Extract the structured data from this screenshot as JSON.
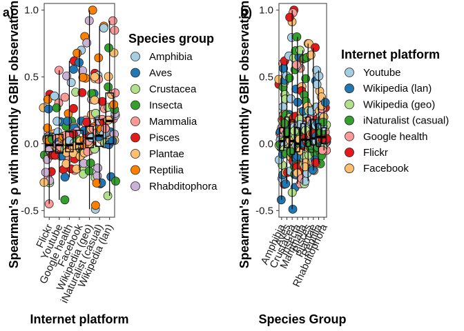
{
  "chart_data": [
    {
      "type": "box-jitter",
      "panel_label": "a)",
      "xlabel": "Internet platform",
      "ylabel": "Spearman's ρ with monthly GBIF observations",
      "ylim": [
        -0.55,
        1.05
      ],
      "yticks": [
        -0.5,
        0.0,
        0.5,
        1.0
      ],
      "ytick_labels": [
        "-0.5",
        "0.0",
        "0.5",
        "1.0"
      ],
      "categories": [
        "Flickr",
        "Youtube",
        "Google health",
        "Facebook",
        "Wikipedia (geo)",
        "iNaturalist (casual)",
        "Wikipedia (lan)"
      ],
      "boxes": [
        {
          "category": "Flickr",
          "q1": -0.06,
          "median": -0.01,
          "q3": 0.06,
          "lo": -0.45,
          "hi": 0.37
        },
        {
          "category": "Youtube",
          "q1": -0.07,
          "median": -0.01,
          "q3": 0.07,
          "lo": -0.42,
          "hi": 0.55
        },
        {
          "category": "Google health",
          "q1": -0.06,
          "median": -0.01,
          "q3": 0.09,
          "lo": -0.25,
          "hi": 0.62
        },
        {
          "category": "Facebook",
          "q1": -0.04,
          "median": 0.0,
          "q3": 0.1,
          "lo": -0.2,
          "hi": 0.7
        },
        {
          "category": "Wikipedia (geo)",
          "q1": -0.03,
          "median": 0.04,
          "q3": 0.13,
          "lo": -0.49,
          "hi": 1.0
        },
        {
          "category": "iNaturalist (casual)",
          "q1": -0.02,
          "median": 0.06,
          "q3": 0.18,
          "lo": -0.3,
          "hi": 0.88
        },
        {
          "category": "Wikipedia (lan)",
          "q1": 0.0,
          "median": 0.17,
          "q3": 0.38,
          "lo": -0.39,
          "hi": 0.92
        }
      ],
      "legend_title": "Species group",
      "legend_position": "right",
      "legend": [
        {
          "name": "Amphibia",
          "color": "#A6CEE3"
        },
        {
          "name": "Aves",
          "color": "#1F78B4"
        },
        {
          "name": "Crustacea",
          "color": "#B2DF8A"
        },
        {
          "name": "Insecta",
          "color": "#33A02C"
        },
        {
          "name": "Mammalia",
          "color": "#FB9A99"
        },
        {
          "name": "Pisces",
          "color": "#E31A1C"
        },
        {
          "name": "Plantae",
          "color": "#FDBF6F"
        },
        {
          "name": "Reptilia",
          "color": "#FF7F00"
        },
        {
          "name": "Rhabditophora",
          "color": "#CAB2D6"
        }
      ]
    },
    {
      "type": "box-jitter",
      "panel_label": "b)",
      "xlabel": "Species Group",
      "ylabel": "Spearman's ρ with monthly GBIF observations",
      "ylim": [
        -0.55,
        1.05
      ],
      "yticks": [
        -0.5,
        0.0,
        0.5,
        1.0
      ],
      "ytick_labels": [
        "-0.5",
        "0.0",
        "0.5",
        "1.0"
      ],
      "categories": [
        "Amphibia",
        "Aves",
        "Crustacea",
        "Insecta",
        "Mammalia",
        "Pisces",
        "Plantae",
        "Reptilia",
        "Rhabditophora"
      ],
      "boxes": [
        {
          "category": "Amphibia",
          "q1": -0.05,
          "median": 0.02,
          "q3": 0.12,
          "lo": -0.42,
          "hi": 0.6
        },
        {
          "category": "Aves",
          "q1": -0.03,
          "median": 0.05,
          "q3": 0.2,
          "lo": -0.3,
          "hi": 0.62
        },
        {
          "category": "Crustacea",
          "q1": -0.08,
          "median": 0.02,
          "q3": 0.18,
          "lo": -0.49,
          "hi": 1.0
        },
        {
          "category": "Insecta",
          "q1": -0.06,
          "median": 0.0,
          "q3": 0.12,
          "lo": -0.3,
          "hi": 0.8
        },
        {
          "category": "Mammalia",
          "q1": -0.04,
          "median": 0.03,
          "q3": 0.15,
          "lo": -0.3,
          "hi": 0.7
        },
        {
          "category": "Pisces",
          "q1": -0.02,
          "median": 0.03,
          "q3": 0.2,
          "lo": -0.28,
          "hi": 0.75
        },
        {
          "category": "Plantae",
          "q1": -0.01,
          "median": 0.04,
          "q3": 0.18,
          "lo": -0.2,
          "hi": 0.72
        },
        {
          "category": "Reptilia",
          "q1": -0.02,
          "median": 0.05,
          "q3": 0.15,
          "lo": -0.15,
          "hi": 0.55
        },
        {
          "category": "Rhabditophora",
          "q1": 0.0,
          "median": 0.05,
          "q3": 0.12,
          "lo": -0.05,
          "hi": 0.35
        }
      ],
      "legend_title": "Internet platform",
      "legend_position": "right",
      "legend": [
        {
          "name": "Youtube",
          "color": "#A6CEE3"
        },
        {
          "name": "Wikipedia (lan)",
          "color": "#1F78B4"
        },
        {
          "name": "Wikipedia (geo)",
          "color": "#B2DF8A"
        },
        {
          "name": "iNaturalist (casual)",
          "color": "#33A02C"
        },
        {
          "name": "Google health",
          "color": "#FB9A99"
        },
        {
          "name": "Flickr",
          "color": "#E31A1C"
        },
        {
          "name": "Facebook",
          "color": "#FDBF6F"
        }
      ]
    }
  ]
}
